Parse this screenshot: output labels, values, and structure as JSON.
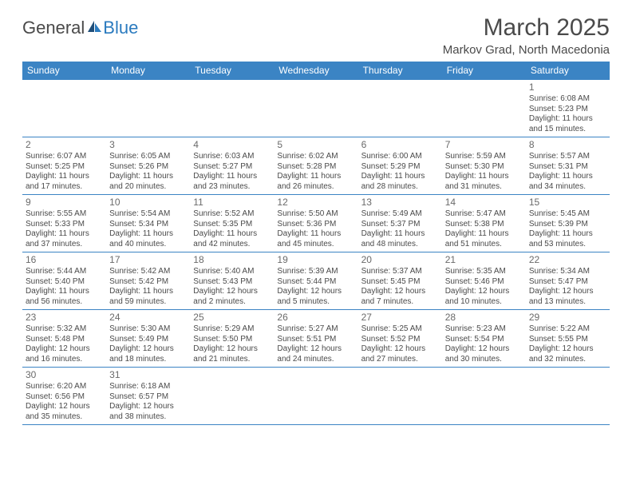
{
  "logo": {
    "text1": "General",
    "text2": "Blue"
  },
  "title": "March 2025",
  "location": "Markov Grad, North Macedonia",
  "colors": {
    "header_bg": "#3b84c4",
    "header_text": "#ffffff",
    "border": "#3b84c4",
    "text": "#4a4a4a",
    "logo_blue": "#2b7bbf"
  },
  "weekdays": [
    "Sunday",
    "Monday",
    "Tuesday",
    "Wednesday",
    "Thursday",
    "Friday",
    "Saturday"
  ],
  "weeks": [
    [
      null,
      null,
      null,
      null,
      null,
      null,
      {
        "n": "1",
        "sr": "Sunrise: 6:08 AM",
        "ss": "Sunset: 5:23 PM",
        "d1": "Daylight: 11 hours",
        "d2": "and 15 minutes."
      }
    ],
    [
      {
        "n": "2",
        "sr": "Sunrise: 6:07 AM",
        "ss": "Sunset: 5:25 PM",
        "d1": "Daylight: 11 hours",
        "d2": "and 17 minutes."
      },
      {
        "n": "3",
        "sr": "Sunrise: 6:05 AM",
        "ss": "Sunset: 5:26 PM",
        "d1": "Daylight: 11 hours",
        "d2": "and 20 minutes."
      },
      {
        "n": "4",
        "sr": "Sunrise: 6:03 AM",
        "ss": "Sunset: 5:27 PM",
        "d1": "Daylight: 11 hours",
        "d2": "and 23 minutes."
      },
      {
        "n": "5",
        "sr": "Sunrise: 6:02 AM",
        "ss": "Sunset: 5:28 PM",
        "d1": "Daylight: 11 hours",
        "d2": "and 26 minutes."
      },
      {
        "n": "6",
        "sr": "Sunrise: 6:00 AM",
        "ss": "Sunset: 5:29 PM",
        "d1": "Daylight: 11 hours",
        "d2": "and 28 minutes."
      },
      {
        "n": "7",
        "sr": "Sunrise: 5:59 AM",
        "ss": "Sunset: 5:30 PM",
        "d1": "Daylight: 11 hours",
        "d2": "and 31 minutes."
      },
      {
        "n": "8",
        "sr": "Sunrise: 5:57 AM",
        "ss": "Sunset: 5:31 PM",
        "d1": "Daylight: 11 hours",
        "d2": "and 34 minutes."
      }
    ],
    [
      {
        "n": "9",
        "sr": "Sunrise: 5:55 AM",
        "ss": "Sunset: 5:33 PM",
        "d1": "Daylight: 11 hours",
        "d2": "and 37 minutes."
      },
      {
        "n": "10",
        "sr": "Sunrise: 5:54 AM",
        "ss": "Sunset: 5:34 PM",
        "d1": "Daylight: 11 hours",
        "d2": "and 40 minutes."
      },
      {
        "n": "11",
        "sr": "Sunrise: 5:52 AM",
        "ss": "Sunset: 5:35 PM",
        "d1": "Daylight: 11 hours",
        "d2": "and 42 minutes."
      },
      {
        "n": "12",
        "sr": "Sunrise: 5:50 AM",
        "ss": "Sunset: 5:36 PM",
        "d1": "Daylight: 11 hours",
        "d2": "and 45 minutes."
      },
      {
        "n": "13",
        "sr": "Sunrise: 5:49 AM",
        "ss": "Sunset: 5:37 PM",
        "d1": "Daylight: 11 hours",
        "d2": "and 48 minutes."
      },
      {
        "n": "14",
        "sr": "Sunrise: 5:47 AM",
        "ss": "Sunset: 5:38 PM",
        "d1": "Daylight: 11 hours",
        "d2": "and 51 minutes."
      },
      {
        "n": "15",
        "sr": "Sunrise: 5:45 AM",
        "ss": "Sunset: 5:39 PM",
        "d1": "Daylight: 11 hours",
        "d2": "and 53 minutes."
      }
    ],
    [
      {
        "n": "16",
        "sr": "Sunrise: 5:44 AM",
        "ss": "Sunset: 5:40 PM",
        "d1": "Daylight: 11 hours",
        "d2": "and 56 minutes."
      },
      {
        "n": "17",
        "sr": "Sunrise: 5:42 AM",
        "ss": "Sunset: 5:42 PM",
        "d1": "Daylight: 11 hours",
        "d2": "and 59 minutes."
      },
      {
        "n": "18",
        "sr": "Sunrise: 5:40 AM",
        "ss": "Sunset: 5:43 PM",
        "d1": "Daylight: 12 hours",
        "d2": "and 2 minutes."
      },
      {
        "n": "19",
        "sr": "Sunrise: 5:39 AM",
        "ss": "Sunset: 5:44 PM",
        "d1": "Daylight: 12 hours",
        "d2": "and 5 minutes."
      },
      {
        "n": "20",
        "sr": "Sunrise: 5:37 AM",
        "ss": "Sunset: 5:45 PM",
        "d1": "Daylight: 12 hours",
        "d2": "and 7 minutes."
      },
      {
        "n": "21",
        "sr": "Sunrise: 5:35 AM",
        "ss": "Sunset: 5:46 PM",
        "d1": "Daylight: 12 hours",
        "d2": "and 10 minutes."
      },
      {
        "n": "22",
        "sr": "Sunrise: 5:34 AM",
        "ss": "Sunset: 5:47 PM",
        "d1": "Daylight: 12 hours",
        "d2": "and 13 minutes."
      }
    ],
    [
      {
        "n": "23",
        "sr": "Sunrise: 5:32 AM",
        "ss": "Sunset: 5:48 PM",
        "d1": "Daylight: 12 hours",
        "d2": "and 16 minutes."
      },
      {
        "n": "24",
        "sr": "Sunrise: 5:30 AM",
        "ss": "Sunset: 5:49 PM",
        "d1": "Daylight: 12 hours",
        "d2": "and 18 minutes."
      },
      {
        "n": "25",
        "sr": "Sunrise: 5:29 AM",
        "ss": "Sunset: 5:50 PM",
        "d1": "Daylight: 12 hours",
        "d2": "and 21 minutes."
      },
      {
        "n": "26",
        "sr": "Sunrise: 5:27 AM",
        "ss": "Sunset: 5:51 PM",
        "d1": "Daylight: 12 hours",
        "d2": "and 24 minutes."
      },
      {
        "n": "27",
        "sr": "Sunrise: 5:25 AM",
        "ss": "Sunset: 5:52 PM",
        "d1": "Daylight: 12 hours",
        "d2": "and 27 minutes."
      },
      {
        "n": "28",
        "sr": "Sunrise: 5:23 AM",
        "ss": "Sunset: 5:54 PM",
        "d1": "Daylight: 12 hours",
        "d2": "and 30 minutes."
      },
      {
        "n": "29",
        "sr": "Sunrise: 5:22 AM",
        "ss": "Sunset: 5:55 PM",
        "d1": "Daylight: 12 hours",
        "d2": "and 32 minutes."
      }
    ],
    [
      {
        "n": "30",
        "sr": "Sunrise: 6:20 AM",
        "ss": "Sunset: 6:56 PM",
        "d1": "Daylight: 12 hours",
        "d2": "and 35 minutes."
      },
      {
        "n": "31",
        "sr": "Sunrise: 6:18 AM",
        "ss": "Sunset: 6:57 PM",
        "d1": "Daylight: 12 hours",
        "d2": "and 38 minutes."
      },
      null,
      null,
      null,
      null,
      null
    ]
  ]
}
